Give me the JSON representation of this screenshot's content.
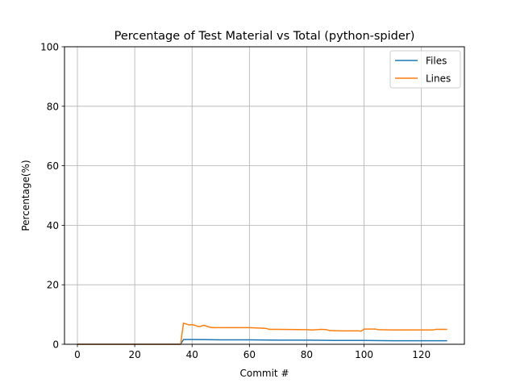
{
  "chart_data": {
    "type": "line",
    "title": "Percentage of Test Material vs Total (python-spider)",
    "xlabel": "Commit #",
    "ylabel": "Percentage(%)",
    "xlim": [
      -4.5,
      135
    ],
    "ylim": [
      0,
      100
    ],
    "xticks": [
      0,
      20,
      40,
      60,
      80,
      100,
      120
    ],
    "yticks": [
      0,
      20,
      40,
      60,
      80,
      100
    ],
    "grid": true,
    "legend": "top-right",
    "series": [
      {
        "name": "Files",
        "color": "#1f77b4",
        "points": [
          [
            0,
            0
          ],
          [
            36,
            0
          ],
          [
            37,
            1.6
          ],
          [
            40,
            1.6
          ],
          [
            50,
            1.5
          ],
          [
            60,
            1.5
          ],
          [
            70,
            1.4
          ],
          [
            80,
            1.4
          ],
          [
            90,
            1.3
          ],
          [
            100,
            1.3
          ],
          [
            110,
            1.2
          ],
          [
            120,
            1.2
          ],
          [
            129,
            1.2
          ]
        ]
      },
      {
        "name": "Lines",
        "color": "#ff7f0e",
        "points": [
          [
            0,
            0
          ],
          [
            36,
            0
          ],
          [
            37,
            7.1
          ],
          [
            38,
            6.8
          ],
          [
            39,
            6.5
          ],
          [
            40,
            6.6
          ],
          [
            41,
            6.4
          ],
          [
            42,
            6.0
          ],
          [
            43,
            6.0
          ],
          [
            44,
            6.4
          ],
          [
            45,
            6.1
          ],
          [
            46,
            5.8
          ],
          [
            47,
            5.6
          ],
          [
            50,
            5.6
          ],
          [
            55,
            5.6
          ],
          [
            60,
            5.6
          ],
          [
            65,
            5.4
          ],
          [
            66,
            5.3
          ],
          [
            67,
            5.0
          ],
          [
            70,
            5.0
          ],
          [
            80,
            4.9
          ],
          [
            82,
            4.8
          ],
          [
            85,
            5.0
          ],
          [
            87,
            4.9
          ],
          [
            88,
            4.6
          ],
          [
            92,
            4.5
          ],
          [
            98,
            4.5
          ],
          [
            99,
            4.4
          ],
          [
            100,
            5.1
          ],
          [
            104,
            5.1
          ],
          [
            105,
            4.9
          ],
          [
            110,
            4.8
          ],
          [
            120,
            4.8
          ],
          [
            124,
            4.8
          ],
          [
            125,
            5.0
          ],
          [
            129,
            5.0
          ]
        ]
      }
    ]
  }
}
